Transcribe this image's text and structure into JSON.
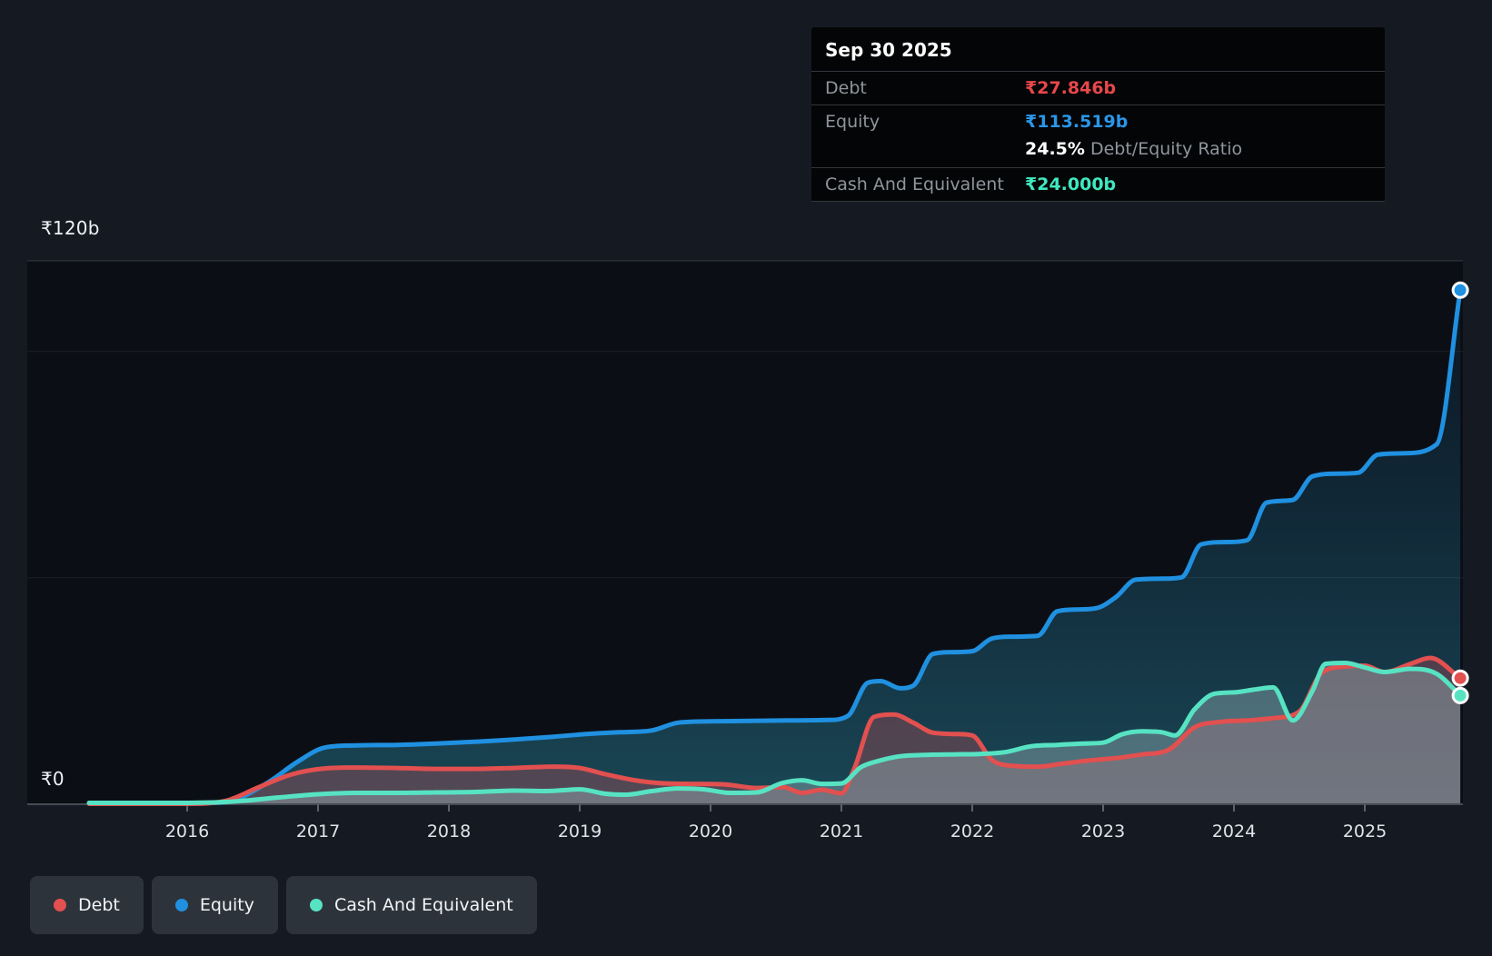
{
  "tooltip": {
    "date": "Sep 30 2025",
    "rows": [
      {
        "label": "Debt",
        "value": "₹27.846b",
        "color": "#e8474b"
      },
      {
        "label": "Equity",
        "value": "₹113.519b",
        "color": "#2b96e8",
        "sub": {
          "value": "24.5%",
          "label": "Debt/Equity Ratio"
        }
      },
      {
        "label": "Cash And Equivalent",
        "value": "₹24.000b",
        "color": "#3fe8c0"
      }
    ]
  },
  "axis": {
    "y_top_label": "₹120b",
    "y_zero_label": "₹0"
  },
  "legend": {
    "items": [
      {
        "label": "Debt",
        "color": "#e2504f"
      },
      {
        "label": "Equity",
        "color": "#2090e0"
      },
      {
        "label": "Cash And Equivalent",
        "color": "#57e3c3"
      }
    ]
  },
  "chart_data": {
    "type": "area",
    "x_unit": "year",
    "x_ticks": [
      2016,
      2017,
      2018,
      2019,
      2020,
      2021,
      2022,
      2023,
      2024,
      2025
    ],
    "x_range": [
      2015.25,
      2025.73
    ],
    "ylim": [
      0,
      120
    ],
    "y_gridlines": [
      0,
      50,
      100,
      120
    ],
    "currency": "₹",
    "value_unit": "billions",
    "legend_position": "bottom-left",
    "series": [
      {
        "name": "Equity",
        "color": "#2090e0",
        "fill": "url(#gEq)",
        "points": [
          [
            2015.25,
            0.2
          ],
          [
            2015.6,
            0.2
          ],
          [
            2016.0,
            0.2
          ],
          [
            2016.3,
            0.5
          ],
          [
            2016.6,
            4.5
          ],
          [
            2016.85,
            9.5
          ],
          [
            2017.05,
            12.5
          ],
          [
            2017.3,
            13.0
          ],
          [
            2017.6,
            13.1
          ],
          [
            2017.9,
            13.4
          ],
          [
            2018.2,
            13.8
          ],
          [
            2018.5,
            14.3
          ],
          [
            2018.8,
            14.9
          ],
          [
            2019.05,
            15.5
          ],
          [
            2019.3,
            15.9
          ],
          [
            2019.55,
            16.3
          ],
          [
            2019.75,
            18.0
          ],
          [
            2020.0,
            18.3
          ],
          [
            2020.3,
            18.4
          ],
          [
            2020.6,
            18.5
          ],
          [
            2020.9,
            18.6
          ],
          [
            2021.05,
            19.5
          ],
          [
            2021.2,
            26.8
          ],
          [
            2021.3,
            27.2
          ],
          [
            2021.45,
            25.6
          ],
          [
            2021.55,
            26.2
          ],
          [
            2021.7,
            33.2
          ],
          [
            2021.85,
            33.6
          ],
          [
            2022.0,
            33.8
          ],
          [
            2022.15,
            36.6
          ],
          [
            2022.3,
            37.0
          ],
          [
            2022.5,
            37.2
          ],
          [
            2022.65,
            42.6
          ],
          [
            2022.8,
            43.0
          ],
          [
            2022.95,
            43.3
          ],
          [
            2023.1,
            45.8
          ],
          [
            2023.25,
            49.6
          ],
          [
            2023.45,
            49.8
          ],
          [
            2023.6,
            50.1
          ],
          [
            2023.75,
            57.4
          ],
          [
            2023.95,
            57.9
          ],
          [
            2024.1,
            58.3
          ],
          [
            2024.25,
            66.6
          ],
          [
            2024.45,
            67.2
          ],
          [
            2024.6,
            72.4
          ],
          [
            2024.8,
            73.0
          ],
          [
            2024.95,
            73.2
          ],
          [
            2025.1,
            77.2
          ],
          [
            2025.3,
            77.5
          ],
          [
            2025.55,
            79.5
          ],
          [
            2025.73,
            113.519
          ]
        ]
      },
      {
        "name": "Debt",
        "color": "#e2504f",
        "fill": "rgba(214,78,88,0.30)",
        "points": [
          [
            2015.25,
            0.1
          ],
          [
            2015.6,
            0.1
          ],
          [
            2016.0,
            0.1
          ],
          [
            2016.3,
            0.8
          ],
          [
            2016.55,
            3.8
          ],
          [
            2016.8,
            6.6
          ],
          [
            2017.05,
            7.9
          ],
          [
            2017.3,
            8.1
          ],
          [
            2017.6,
            8.0
          ],
          [
            2017.9,
            7.8
          ],
          [
            2018.2,
            7.8
          ],
          [
            2018.5,
            8.0
          ],
          [
            2018.8,
            8.3
          ],
          [
            2019.0,
            8.0
          ],
          [
            2019.2,
            6.6
          ],
          [
            2019.4,
            5.4
          ],
          [
            2019.6,
            4.7
          ],
          [
            2019.85,
            4.5
          ],
          [
            2020.1,
            4.4
          ],
          [
            2020.35,
            3.6
          ],
          [
            2020.55,
            3.8
          ],
          [
            2020.7,
            2.5
          ],
          [
            2020.85,
            3.2
          ],
          [
            2021.0,
            2.4
          ],
          [
            2021.1,
            8.0
          ],
          [
            2021.25,
            19.3
          ],
          [
            2021.4,
            19.8
          ],
          [
            2021.55,
            18.0
          ],
          [
            2021.7,
            15.8
          ],
          [
            2021.9,
            15.5
          ],
          [
            2022.0,
            15.2
          ],
          [
            2022.15,
            9.8
          ],
          [
            2022.3,
            8.5
          ],
          [
            2022.5,
            8.3
          ],
          [
            2022.7,
            9.0
          ],
          [
            2022.9,
            9.7
          ],
          [
            2023.1,
            10.2
          ],
          [
            2023.3,
            11.0
          ],
          [
            2023.5,
            12.0
          ],
          [
            2023.7,
            17.0
          ],
          [
            2023.9,
            18.2
          ],
          [
            2024.1,
            18.5
          ],
          [
            2024.3,
            19.0
          ],
          [
            2024.5,
            20.5
          ],
          [
            2024.67,
            29.0
          ],
          [
            2024.85,
            30.4
          ],
          [
            2025.0,
            30.6
          ],
          [
            2025.15,
            29.2
          ],
          [
            2025.35,
            31.0
          ],
          [
            2025.5,
            32.3
          ],
          [
            2025.73,
            27.846
          ]
        ]
      },
      {
        "name": "Cash And Equivalent",
        "color": "#57e3c3",
        "fill": "rgba(158,184,190,0.40)",
        "points": [
          [
            2015.25,
            0.3
          ],
          [
            2015.6,
            0.3
          ],
          [
            2016.0,
            0.3
          ],
          [
            2016.35,
            0.6
          ],
          [
            2016.7,
            1.5
          ],
          [
            2017.0,
            2.2
          ],
          [
            2017.3,
            2.5
          ],
          [
            2017.6,
            2.5
          ],
          [
            2017.9,
            2.6
          ],
          [
            2018.2,
            2.7
          ],
          [
            2018.5,
            3.0
          ],
          [
            2018.75,
            2.9
          ],
          [
            2019.0,
            3.3
          ],
          [
            2019.2,
            2.3
          ],
          [
            2019.35,
            2.1
          ],
          [
            2019.55,
            2.9
          ],
          [
            2019.75,
            3.5
          ],
          [
            2019.95,
            3.3
          ],
          [
            2020.15,
            2.5
          ],
          [
            2020.35,
            2.6
          ],
          [
            2020.55,
            4.7
          ],
          [
            2020.7,
            5.3
          ],
          [
            2020.85,
            4.5
          ],
          [
            2021.0,
            4.6
          ],
          [
            2021.15,
            8.2
          ],
          [
            2021.3,
            9.7
          ],
          [
            2021.45,
            10.6
          ],
          [
            2021.65,
            10.9
          ],
          [
            2021.85,
            11.0
          ],
          [
            2022.05,
            11.1
          ],
          [
            2022.25,
            11.5
          ],
          [
            2022.45,
            12.8
          ],
          [
            2022.65,
            13.1
          ],
          [
            2022.85,
            13.4
          ],
          [
            2023.0,
            13.6
          ],
          [
            2023.15,
            15.5
          ],
          [
            2023.3,
            16.1
          ],
          [
            2023.45,
            15.9
          ],
          [
            2023.55,
            15.2
          ],
          [
            2023.7,
            21.0
          ],
          [
            2023.85,
            24.4
          ],
          [
            2024.0,
            24.7
          ],
          [
            2024.15,
            25.3
          ],
          [
            2024.3,
            25.8
          ],
          [
            2024.45,
            18.5
          ],
          [
            2024.6,
            25.0
          ],
          [
            2024.7,
            31.0
          ],
          [
            2024.85,
            31.2
          ],
          [
            2025.0,
            30.2
          ],
          [
            2025.15,
            29.2
          ],
          [
            2025.35,
            29.9
          ],
          [
            2025.55,
            28.8
          ],
          [
            2025.73,
            24.0
          ]
        ]
      }
    ],
    "end_markers": true
  }
}
